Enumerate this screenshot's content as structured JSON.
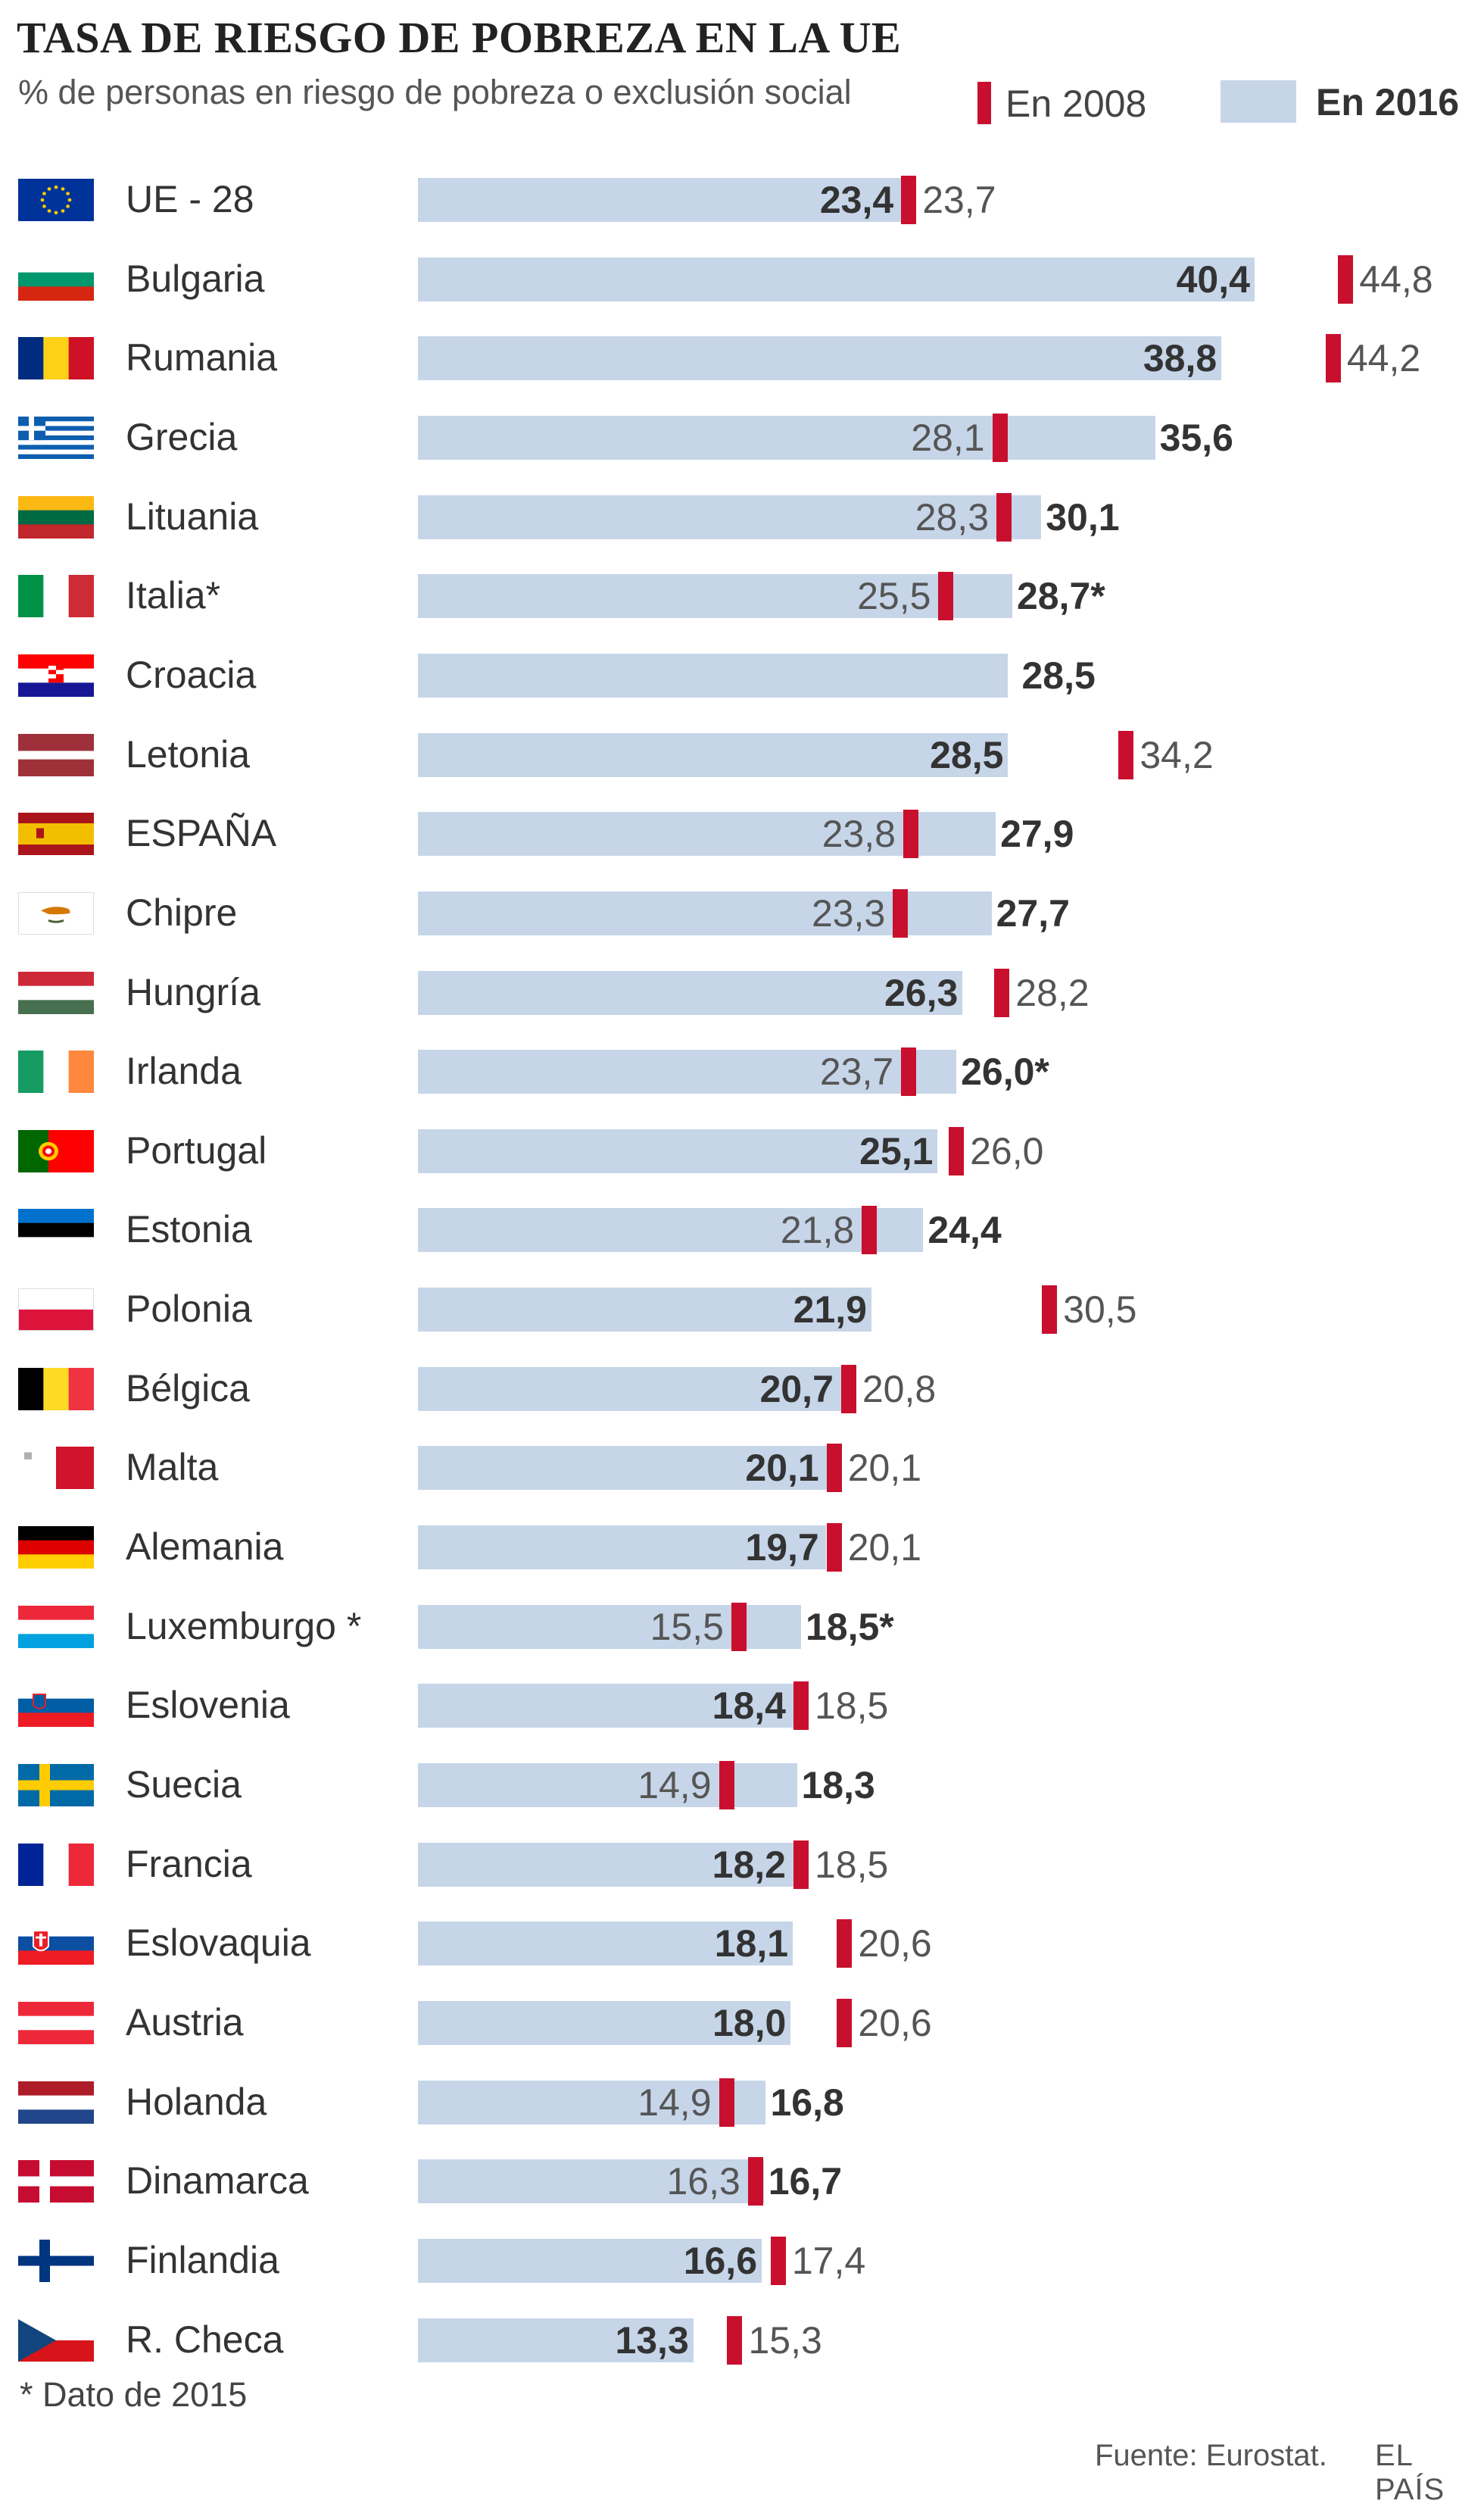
{
  "title": "TASA DE RIESGO DE POBREZA EN LA UE",
  "subtitle": "% de personas en riesgo de pobreza o exclusión social",
  "legend": {
    "y2008": "En 2008",
    "y2016": "En 2016"
  },
  "footnote": "* Dato de 2015",
  "source": "Fuente: Eurostat.",
  "brand": "EL PAÍS",
  "colors": {
    "bar_2016": "#c6d5e8",
    "marker_2008": "#c8102e",
    "text": "#333333"
  },
  "chart_data": {
    "type": "bar",
    "orientation": "horizontal",
    "title": "TASA DE RIESGO DE POBREZA EN LA UE",
    "subtitle": "% de personas en riesgo de pobreza o exclusión social",
    "xlim": [
      0,
      50
    ],
    "categories": [
      "UE - 28",
      "Bulgaria",
      "Rumania",
      "Grecia",
      "Lituania",
      "Italia*",
      "Croacia",
      "Letonia",
      "ESPAÑA",
      "Chipre",
      "Hungría",
      "Irlanda",
      "Portugal",
      "Estonia",
      "Polonia",
      "Bélgica",
      "Malta",
      "Alemania",
      "Luxemburgo *",
      "Eslovenia",
      "Suecia",
      "Francia",
      "Eslovaquia",
      "Austria",
      "Holanda",
      "Dinamarca",
      "Finlandia",
      "R. Checa"
    ],
    "series": [
      {
        "name": "En 2016",
        "values": [
          23.4,
          40.4,
          38.8,
          35.6,
          30.1,
          28.7,
          28.5,
          28.5,
          27.9,
          27.7,
          26.3,
          26.0,
          25.1,
          24.4,
          21.9,
          20.7,
          20.1,
          19.7,
          18.5,
          18.4,
          18.3,
          18.2,
          18.1,
          18.0,
          16.8,
          16.7,
          16.6,
          13.3
        ]
      },
      {
        "name": "En 2008",
        "values": [
          23.7,
          44.8,
          44.2,
          28.1,
          28.3,
          25.5,
          null,
          34.2,
          23.8,
          23.3,
          28.2,
          23.7,
          26.0,
          21.8,
          30.5,
          20.8,
          20.1,
          20.1,
          15.5,
          18.5,
          14.9,
          18.5,
          20.6,
          20.6,
          14.9,
          16.3,
          17.4,
          15.3
        ]
      }
    ],
    "labels_2016": [
      "23,4",
      "40,4",
      "38,8",
      "35,6",
      "30,1",
      "28,7*",
      "28,5",
      "28,5",
      "27,9",
      "27,7",
      "26,3",
      "26,0*",
      "25,1",
      "24,4",
      "21,9",
      "20,7",
      "20,1",
      "19,7",
      "18,5*",
      "18,4",
      "18,3",
      "18,2",
      "18,1",
      "18,0",
      "16,8",
      "16,7",
      "16,6",
      "13,3"
    ],
    "labels_2008": [
      "23,7",
      "44,8",
      "44,2",
      "28,1",
      "28,3",
      "25,5",
      "",
      "34,2",
      "23,8",
      "23,3",
      "28,2",
      "23,7",
      "26,0",
      "21,8",
      "30,5",
      "20,8",
      "20,1",
      "20,1",
      "15,5",
      "18,5",
      "14,9",
      "18,5",
      "20,6",
      "20,6",
      "14,9",
      "16,3",
      "17,4",
      "15,3"
    ]
  },
  "flags": [
    "flag-eu-icon",
    "flag-bulgaria-icon",
    "flag-romania-icon",
    "flag-greece-icon",
    "flag-lithuania-icon",
    "flag-italy-icon",
    "flag-croatia-icon",
    "flag-latvia-icon",
    "flag-spain-icon",
    "flag-cyprus-icon",
    "flag-hungary-icon",
    "flag-ireland-icon",
    "flag-portugal-icon",
    "flag-estonia-icon",
    "flag-poland-icon",
    "flag-belgium-icon",
    "flag-malta-icon",
    "flag-germany-icon",
    "flag-luxembourg-icon",
    "flag-slovenia-icon",
    "flag-sweden-icon",
    "flag-france-icon",
    "flag-slovakia-icon",
    "flag-austria-icon",
    "flag-netherlands-icon",
    "flag-denmark-icon",
    "flag-finland-icon",
    "flag-czechia-icon"
  ]
}
